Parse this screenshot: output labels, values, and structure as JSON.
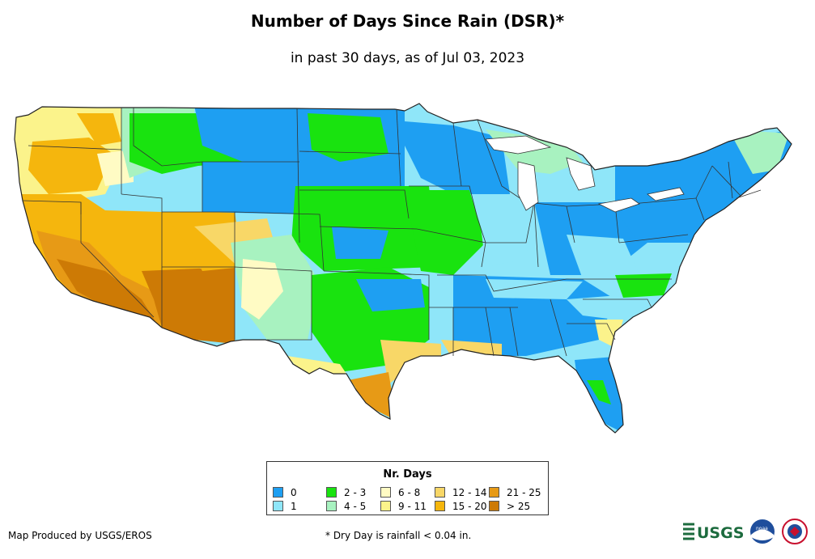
{
  "header": {
    "title": "Number of Days Since Rain (DSR)*",
    "subtitle": "in past 30 days, as of Jul 03, 2023"
  },
  "legend": {
    "title": "Nr. Days",
    "items": [
      {
        "label": "0",
        "color": "#1e9ff2"
      },
      {
        "label": "1",
        "color": "#8fe6f9"
      },
      {
        "label": "2 - 3",
        "color": "#19e30f"
      },
      {
        "label": "4 - 5",
        "color": "#a8f2c0"
      },
      {
        "label": "6 - 8",
        "color": "#fffbc4"
      },
      {
        "label": "9 - 11",
        "color": "#fbf38b"
      },
      {
        "label": "12 - 14",
        "color": "#f8d767"
      },
      {
        "label": "15 - 20",
        "color": "#f5b60d"
      },
      {
        "label": "21 - 25",
        "color": "#e79a16"
      },
      {
        "label": "> 25",
        "color": "#cd7a05"
      }
    ]
  },
  "footer": {
    "credit": "Map Produced by USGS/EROS",
    "note": "* Dry Day is rainfall < 0.04 in.",
    "usgs_logo_text": "USGS",
    "noaa_logo_text": "noaa"
  },
  "icons": {
    "usgs": "usgs-logo-icon",
    "noaa": "noaa-logo-icon",
    "nws": "nws-logo-icon"
  }
}
